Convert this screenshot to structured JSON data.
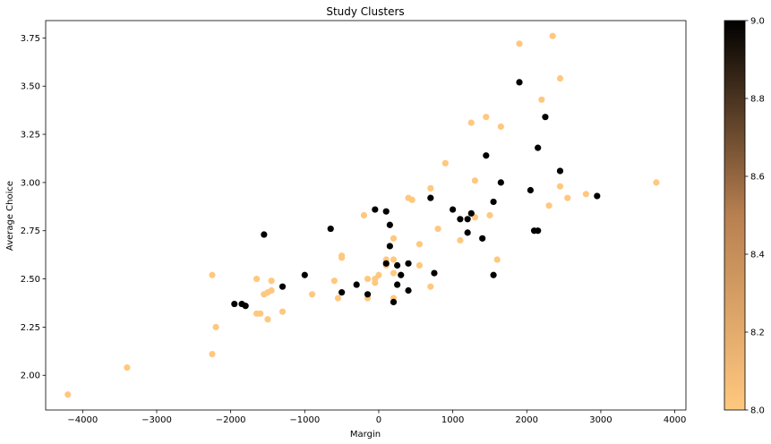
{
  "chart_data": {
    "type": "scatter",
    "title": "Study Clusters",
    "xlabel": "Margin",
    "ylabel": "Average Choice",
    "xlim": [
      -4500,
      4150
    ],
    "ylim": [
      1.82,
      3.84
    ],
    "xticks": [
      -4000,
      -3000,
      -2000,
      -1000,
      0,
      1000,
      2000,
      3000,
      4000
    ],
    "xtick_labels": [
      "−4000",
      "−3000",
      "−2000",
      "−1000",
      "0",
      "1000",
      "2000",
      "3000",
      "4000"
    ],
    "yticks": [
      2.0,
      2.25,
      2.5,
      2.75,
      3.0,
      3.25,
      3.5,
      3.75
    ],
    "ytick_labels": [
      "2.00",
      "2.25",
      "2.50",
      "2.75",
      "3.00",
      "3.25",
      "3.50",
      "3.75"
    ],
    "grid": false,
    "colorbar": {
      "range": [
        8.0,
        9.0
      ],
      "ticks": [
        8.0,
        8.2,
        8.4,
        8.6,
        8.8,
        9.0
      ],
      "tick_labels": [
        "8.0",
        "8.2",
        "8.4",
        "8.6",
        "8.8",
        "9.0"
      ],
      "cmap": "copper_r",
      "colors": [
        "#ffc87f",
        "#000000"
      ]
    },
    "points": [
      {
        "x": -4200,
        "y": 1.9,
        "c": 8
      },
      {
        "x": -3400,
        "y": 2.04,
        "c": 8
      },
      {
        "x": -2250,
        "y": 2.11,
        "c": 8
      },
      {
        "x": -2200,
        "y": 2.25,
        "c": 8
      },
      {
        "x": -2250,
        "y": 2.52,
        "c": 8
      },
      {
        "x": -1650,
        "y": 2.5,
        "c": 8
      },
      {
        "x": -1650,
        "y": 2.32,
        "c": 8
      },
      {
        "x": -1600,
        "y": 2.32,
        "c": 8
      },
      {
        "x": -1550,
        "y": 2.42,
        "c": 8
      },
      {
        "x": -1500,
        "y": 2.43,
        "c": 8
      },
      {
        "x": -1450,
        "y": 2.44,
        "c": 8
      },
      {
        "x": -1450,
        "y": 2.49,
        "c": 8
      },
      {
        "x": -1500,
        "y": 2.29,
        "c": 8
      },
      {
        "x": -1300,
        "y": 2.33,
        "c": 8
      },
      {
        "x": -900,
        "y": 2.42,
        "c": 8
      },
      {
        "x": -600,
        "y": 2.49,
        "c": 8
      },
      {
        "x": -550,
        "y": 2.4,
        "c": 8
      },
      {
        "x": -500,
        "y": 2.61,
        "c": 8
      },
      {
        "x": -500,
        "y": 2.62,
        "c": 8
      },
      {
        "x": -200,
        "y": 2.83,
        "c": 8
      },
      {
        "x": -150,
        "y": 2.5,
        "c": 8
      },
      {
        "x": -150,
        "y": 2.4,
        "c": 8
      },
      {
        "x": -50,
        "y": 2.48,
        "c": 8
      },
      {
        "x": -50,
        "y": 2.5,
        "c": 8
      },
      {
        "x": 0,
        "y": 2.52,
        "c": 8
      },
      {
        "x": 100,
        "y": 2.57,
        "c": 8
      },
      {
        "x": 100,
        "y": 2.6,
        "c": 8
      },
      {
        "x": 200,
        "y": 2.53,
        "c": 8
      },
      {
        "x": 200,
        "y": 2.4,
        "c": 8
      },
      {
        "x": 200,
        "y": 2.6,
        "c": 8
      },
      {
        "x": 200,
        "y": 2.71,
        "c": 8
      },
      {
        "x": 400,
        "y": 2.92,
        "c": 8
      },
      {
        "x": 450,
        "y": 2.91,
        "c": 8
      },
      {
        "x": 550,
        "y": 2.57,
        "c": 8
      },
      {
        "x": 550,
        "y": 2.68,
        "c": 8
      },
      {
        "x": 700,
        "y": 2.46,
        "c": 8
      },
      {
        "x": 700,
        "y": 2.97,
        "c": 8
      },
      {
        "x": 800,
        "y": 2.76,
        "c": 8
      },
      {
        "x": 900,
        "y": 3.1,
        "c": 8
      },
      {
        "x": 1100,
        "y": 2.7,
        "c": 8
      },
      {
        "x": 1250,
        "y": 3.31,
        "c": 8
      },
      {
        "x": 1300,
        "y": 2.82,
        "c": 8
      },
      {
        "x": 1300,
        "y": 3.01,
        "c": 8
      },
      {
        "x": 1450,
        "y": 3.34,
        "c": 8
      },
      {
        "x": 1500,
        "y": 2.83,
        "c": 8
      },
      {
        "x": 1600,
        "y": 2.6,
        "c": 8
      },
      {
        "x": 1650,
        "y": 3.29,
        "c": 8
      },
      {
        "x": 1900,
        "y": 3.72,
        "c": 8
      },
      {
        "x": 2200,
        "y": 3.43,
        "c": 8
      },
      {
        "x": 2300,
        "y": 2.88,
        "c": 8
      },
      {
        "x": 2350,
        "y": 3.76,
        "c": 8
      },
      {
        "x": 2450,
        "y": 3.54,
        "c": 8
      },
      {
        "x": 2450,
        "y": 2.98,
        "c": 8
      },
      {
        "x": 2550,
        "y": 2.92,
        "c": 8
      },
      {
        "x": 2800,
        "y": 2.94,
        "c": 8
      },
      {
        "x": 3750,
        "y": 3.0,
        "c": 8
      },
      {
        "x": -1950,
        "y": 2.37,
        "c": 9
      },
      {
        "x": -1850,
        "y": 2.37,
        "c": 9
      },
      {
        "x": -1800,
        "y": 2.36,
        "c": 9
      },
      {
        "x": -1550,
        "y": 2.73,
        "c": 9
      },
      {
        "x": -1300,
        "y": 2.46,
        "c": 9
      },
      {
        "x": -1000,
        "y": 2.52,
        "c": 9
      },
      {
        "x": -650,
        "y": 2.76,
        "c": 9
      },
      {
        "x": -500,
        "y": 2.43,
        "c": 9
      },
      {
        "x": -300,
        "y": 2.47,
        "c": 9
      },
      {
        "x": -150,
        "y": 2.42,
        "c": 9
      },
      {
        "x": -50,
        "y": 2.86,
        "c": 9
      },
      {
        "x": 100,
        "y": 2.85,
        "c": 9
      },
      {
        "x": 100,
        "y": 2.58,
        "c": 9
      },
      {
        "x": 150,
        "y": 2.67,
        "c": 9
      },
      {
        "x": 150,
        "y": 2.78,
        "c": 9
      },
      {
        "x": 200,
        "y": 2.38,
        "c": 9
      },
      {
        "x": 250,
        "y": 2.47,
        "c": 9
      },
      {
        "x": 250,
        "y": 2.57,
        "c": 9
      },
      {
        "x": 300,
        "y": 2.52,
        "c": 9
      },
      {
        "x": 400,
        "y": 2.44,
        "c": 9
      },
      {
        "x": 400,
        "y": 2.58,
        "c": 9
      },
      {
        "x": 700,
        "y": 2.92,
        "c": 9
      },
      {
        "x": 750,
        "y": 2.53,
        "c": 9
      },
      {
        "x": 1000,
        "y": 2.86,
        "c": 9
      },
      {
        "x": 1100,
        "y": 2.81,
        "c": 9
      },
      {
        "x": 1200,
        "y": 2.81,
        "c": 9
      },
      {
        "x": 1200,
        "y": 2.74,
        "c": 9
      },
      {
        "x": 1250,
        "y": 2.84,
        "c": 9
      },
      {
        "x": 1400,
        "y": 2.71,
        "c": 9
      },
      {
        "x": 1450,
        "y": 3.14,
        "c": 9
      },
      {
        "x": 1550,
        "y": 2.52,
        "c": 9
      },
      {
        "x": 1550,
        "y": 2.9,
        "c": 9
      },
      {
        "x": 1650,
        "y": 3.0,
        "c": 9
      },
      {
        "x": 1900,
        "y": 3.52,
        "c": 9
      },
      {
        "x": 2050,
        "y": 2.96,
        "c": 9
      },
      {
        "x": 2100,
        "y": 2.75,
        "c": 9
      },
      {
        "x": 2150,
        "y": 2.75,
        "c": 9
      },
      {
        "x": 2150,
        "y": 3.18,
        "c": 9
      },
      {
        "x": 2250,
        "y": 3.34,
        "c": 9
      },
      {
        "x": 2450,
        "y": 3.06,
        "c": 9
      },
      {
        "x": 2950,
        "y": 2.93,
        "c": 9
      }
    ]
  }
}
